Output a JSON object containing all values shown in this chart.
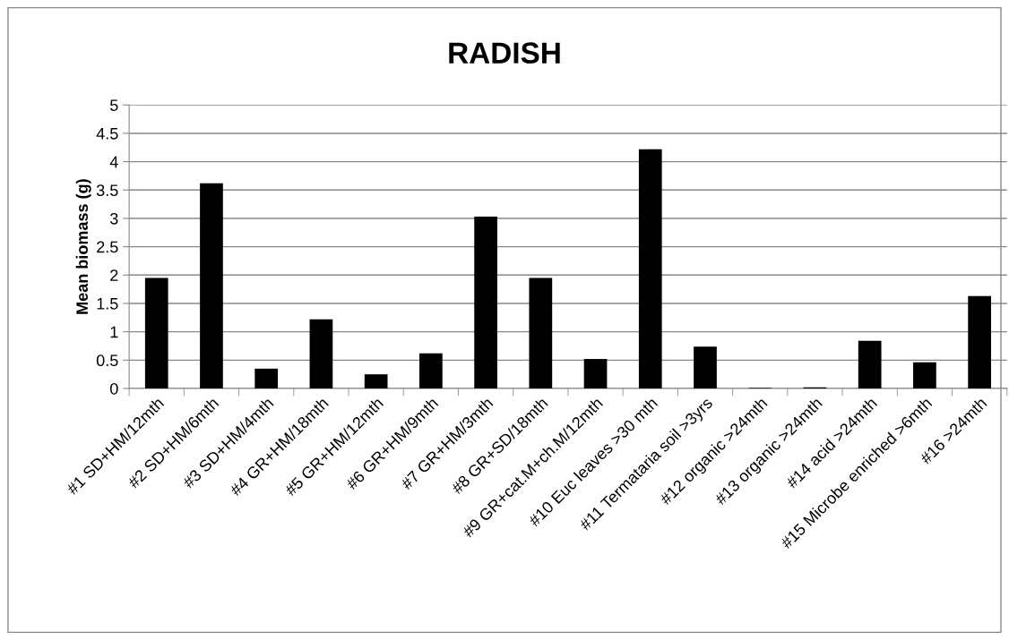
{
  "chart_data": {
    "type": "bar",
    "title": "RADISH",
    "ylabel": "Mean biomass (g)",
    "categories": [
      "#1 SD+HM/12mth",
      "#2 SD+HM/6mth",
      "#3 SD+HM/4mth",
      "#4 GR+HM/18mth",
      "#5 GR+HM/12mth",
      "#6 GR+HM/9mth",
      "#7 GR+HM/3mth",
      "#8 GR+SD/18mth",
      "#9 GR+cat.M+ch.M/12mth",
      "#10 Euc leaves >30 mth",
      "#11 Termataria soil >3yrs",
      "#12 organic >24mth",
      "#13 organic >24mth",
      "#14 acid >24mth",
      "#15 Microbe enriched >6mth",
      "#16 >24mth"
    ],
    "values": [
      1.95,
      3.62,
      0.35,
      1.22,
      0.25,
      0.62,
      3.03,
      1.95,
      0.52,
      4.22,
      0.74,
      0.01,
      0.02,
      0.84,
      0.46,
      1.63
    ],
    "color": "#000000",
    "ylim": [
      0,
      5
    ],
    "yticks": [
      0,
      0.5,
      1,
      1.5,
      2,
      2.5,
      3,
      3.5,
      4,
      4.5,
      5
    ],
    "grid": "y",
    "legend": false
  }
}
